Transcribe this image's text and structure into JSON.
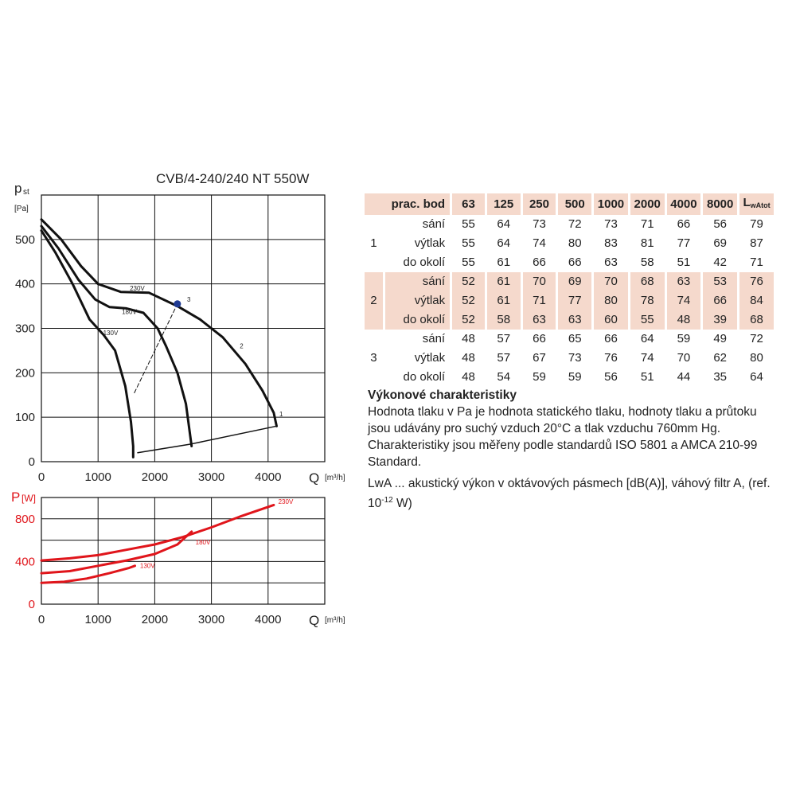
{
  "chart_data": [
    {
      "type": "line",
      "title": "CVB/4-240/240 NT 550W",
      "ylabel_main": "p",
      "ylabel_sub": "st",
      "ylabel_unit": "[Pa]",
      "xlabel": "Q",
      "xlabel_unit": "[m³/h]",
      "xlim": [
        0,
        5000
      ],
      "ylim": [
        0,
        600
      ],
      "xticks": [
        "0",
        "1000",
        "2000",
        "3000",
        "4000"
      ],
      "yticks": [
        "0",
        "100",
        "200",
        "300",
        "400",
        "500"
      ],
      "grid": true,
      "series": [
        {
          "name": "230V",
          "x": [
            0,
            350,
            700,
            1000,
            1400,
            1900,
            2400,
            2800,
            3200,
            3600,
            3900,
            4100,
            4150
          ],
          "y": [
            545,
            500,
            440,
            400,
            382,
            380,
            350,
            320,
            280,
            220,
            160,
            110,
            80
          ]
        },
        {
          "name": "180V",
          "x": [
            0,
            300,
            650,
            950,
            1200,
            1500,
            1800,
            2050,
            2200,
            2400,
            2550,
            2650
          ],
          "y": [
            530,
            480,
            410,
            365,
            348,
            345,
            335,
            300,
            260,
            200,
            130,
            35
          ]
        },
        {
          "name": "130V",
          "x": [
            0,
            250,
            550,
            850,
            1100,
            1300,
            1480,
            1580,
            1620,
            1620
          ],
          "y": [
            520,
            470,
            400,
            320,
            285,
            250,
            170,
            90,
            35,
            10
          ]
        },
        {
          "name": "",
          "x": [
            1700,
            2650,
            4150
          ],
          "y": [
            20,
            40,
            80
          ]
        },
        {
          "name": "",
          "dashed": true,
          "x": [
            1640,
            2400
          ],
          "y": [
            155,
            355
          ]
        }
      ],
      "annotations": [
        {
          "text": "230V",
          "x": 1560,
          "y": 385
        },
        {
          "text": "180V",
          "x": 1420,
          "y": 332
        },
        {
          "text": "130V",
          "x": 1090,
          "y": 285
        },
        {
          "text": "1",
          "x": 4200,
          "y": 102
        },
        {
          "text": "2",
          "x": 3500,
          "y": 255
        },
        {
          "text": "3",
          "x": 2570,
          "y": 360
        }
      ],
      "points": [
        {
          "label": "3",
          "x": 2400,
          "y": 355
        }
      ]
    },
    {
      "type": "line",
      "ylabel_main": "P",
      "ylabel_unit": "[W]",
      "xlabel": "Q",
      "xlabel_unit": "[m³/h]",
      "xlim": [
        0,
        5000
      ],
      "ylim": [
        0,
        1000
      ],
      "xticks": [
        "0",
        "1000",
        "2000",
        "3000",
        "4000"
      ],
      "yticks": [
        "0",
        "400",
        "800"
      ],
      "grid": true,
      "series": [
        {
          "name": "230V",
          "x": [
            0,
            500,
            1000,
            1500,
            2000,
            2500,
            3000,
            3500,
            4100
          ],
          "y": [
            410,
            430,
            460,
            510,
            560,
            630,
            720,
            820,
            930
          ]
        },
        {
          "name": "180V",
          "x": [
            0,
            500,
            1000,
            1500,
            2000,
            2400,
            2650
          ],
          "y": [
            290,
            310,
            360,
            410,
            470,
            560,
            680
          ]
        },
        {
          "name": "130V",
          "x": [
            0,
            400,
            800,
            1200,
            1550,
            1650
          ],
          "y": [
            200,
            210,
            240,
            290,
            340,
            360
          ]
        }
      ],
      "annotations": [
        {
          "text": "230V",
          "x": 4180,
          "y": 940
        },
        {
          "text": "180V",
          "x": 2720,
          "y": 560
        },
        {
          "text": "130V",
          "x": 1740,
          "y": 340
        }
      ]
    }
  ],
  "table": {
    "header": [
      "prac. bod",
      "63",
      "125",
      "250",
      "500",
      "1000",
      "2000",
      "4000",
      "8000"
    ],
    "header_last_main": "L",
    "header_last_sub": "wAtot",
    "groups": [
      {
        "point": "1",
        "shaded": false,
        "rows": [
          {
            "cond": "sání",
            "values": [
              "55",
              "64",
              "73",
              "72",
              "73",
              "71",
              "66",
              "56",
              "79"
            ]
          },
          {
            "cond": "výtlak",
            "values": [
              "55",
              "64",
              "74",
              "80",
              "83",
              "81",
              "77",
              "69",
              "87"
            ]
          },
          {
            "cond": "do okolí",
            "values": [
              "55",
              "61",
              "66",
              "66",
              "63",
              "58",
              "51",
              "42",
              "71"
            ]
          }
        ]
      },
      {
        "point": "2",
        "shaded": true,
        "rows": [
          {
            "cond": "sání",
            "values": [
              "52",
              "61",
              "70",
              "69",
              "70",
              "68",
              "63",
              "53",
              "76"
            ]
          },
          {
            "cond": "výtlak",
            "values": [
              "52",
              "61",
              "71",
              "77",
              "80",
              "78",
              "74",
              "66",
              "84"
            ]
          },
          {
            "cond": "do okolí",
            "values": [
              "52",
              "58",
              "63",
              "63",
              "60",
              "55",
              "48",
              "39",
              "68"
            ]
          }
        ]
      },
      {
        "point": "3",
        "shaded": false,
        "rows": [
          {
            "cond": "sání",
            "values": [
              "48",
              "57",
              "66",
              "65",
              "66",
              "64",
              "59",
              "49",
              "72"
            ]
          },
          {
            "cond": "výtlak",
            "values": [
              "48",
              "57",
              "67",
              "73",
              "76",
              "74",
              "70",
              "62",
              "80"
            ]
          },
          {
            "cond": "do okolí",
            "values": [
              "48",
              "54",
              "59",
              "59",
              "56",
              "51",
              "44",
              "35",
              "64"
            ]
          }
        ]
      }
    ]
  },
  "description": {
    "heading": "Výkonové charakteristiky",
    "para1": "Hodnota tlaku v Pa je hodnota statického tlaku, hodnoty tlaku a průtoku jsou udávány pro suchý vzduch 20°C a tlak vzduchu 760mm Hg. Charakteristiky jsou měřeny podle standardů ISO 5801 a AMCA 210-99 Standard.",
    "para2_pre": "LwA ... akustický výkon v oktávových pásmech [dB(A)], váhový filtr A, (ref. 10",
    "para2_exp": "-12",
    "para2_post": " W)"
  },
  "colors": {
    "curve": "#111111",
    "power": "#e0151b",
    "point": "#1f3a93",
    "grid": "#111111",
    "shade": "#f5d9cc"
  }
}
